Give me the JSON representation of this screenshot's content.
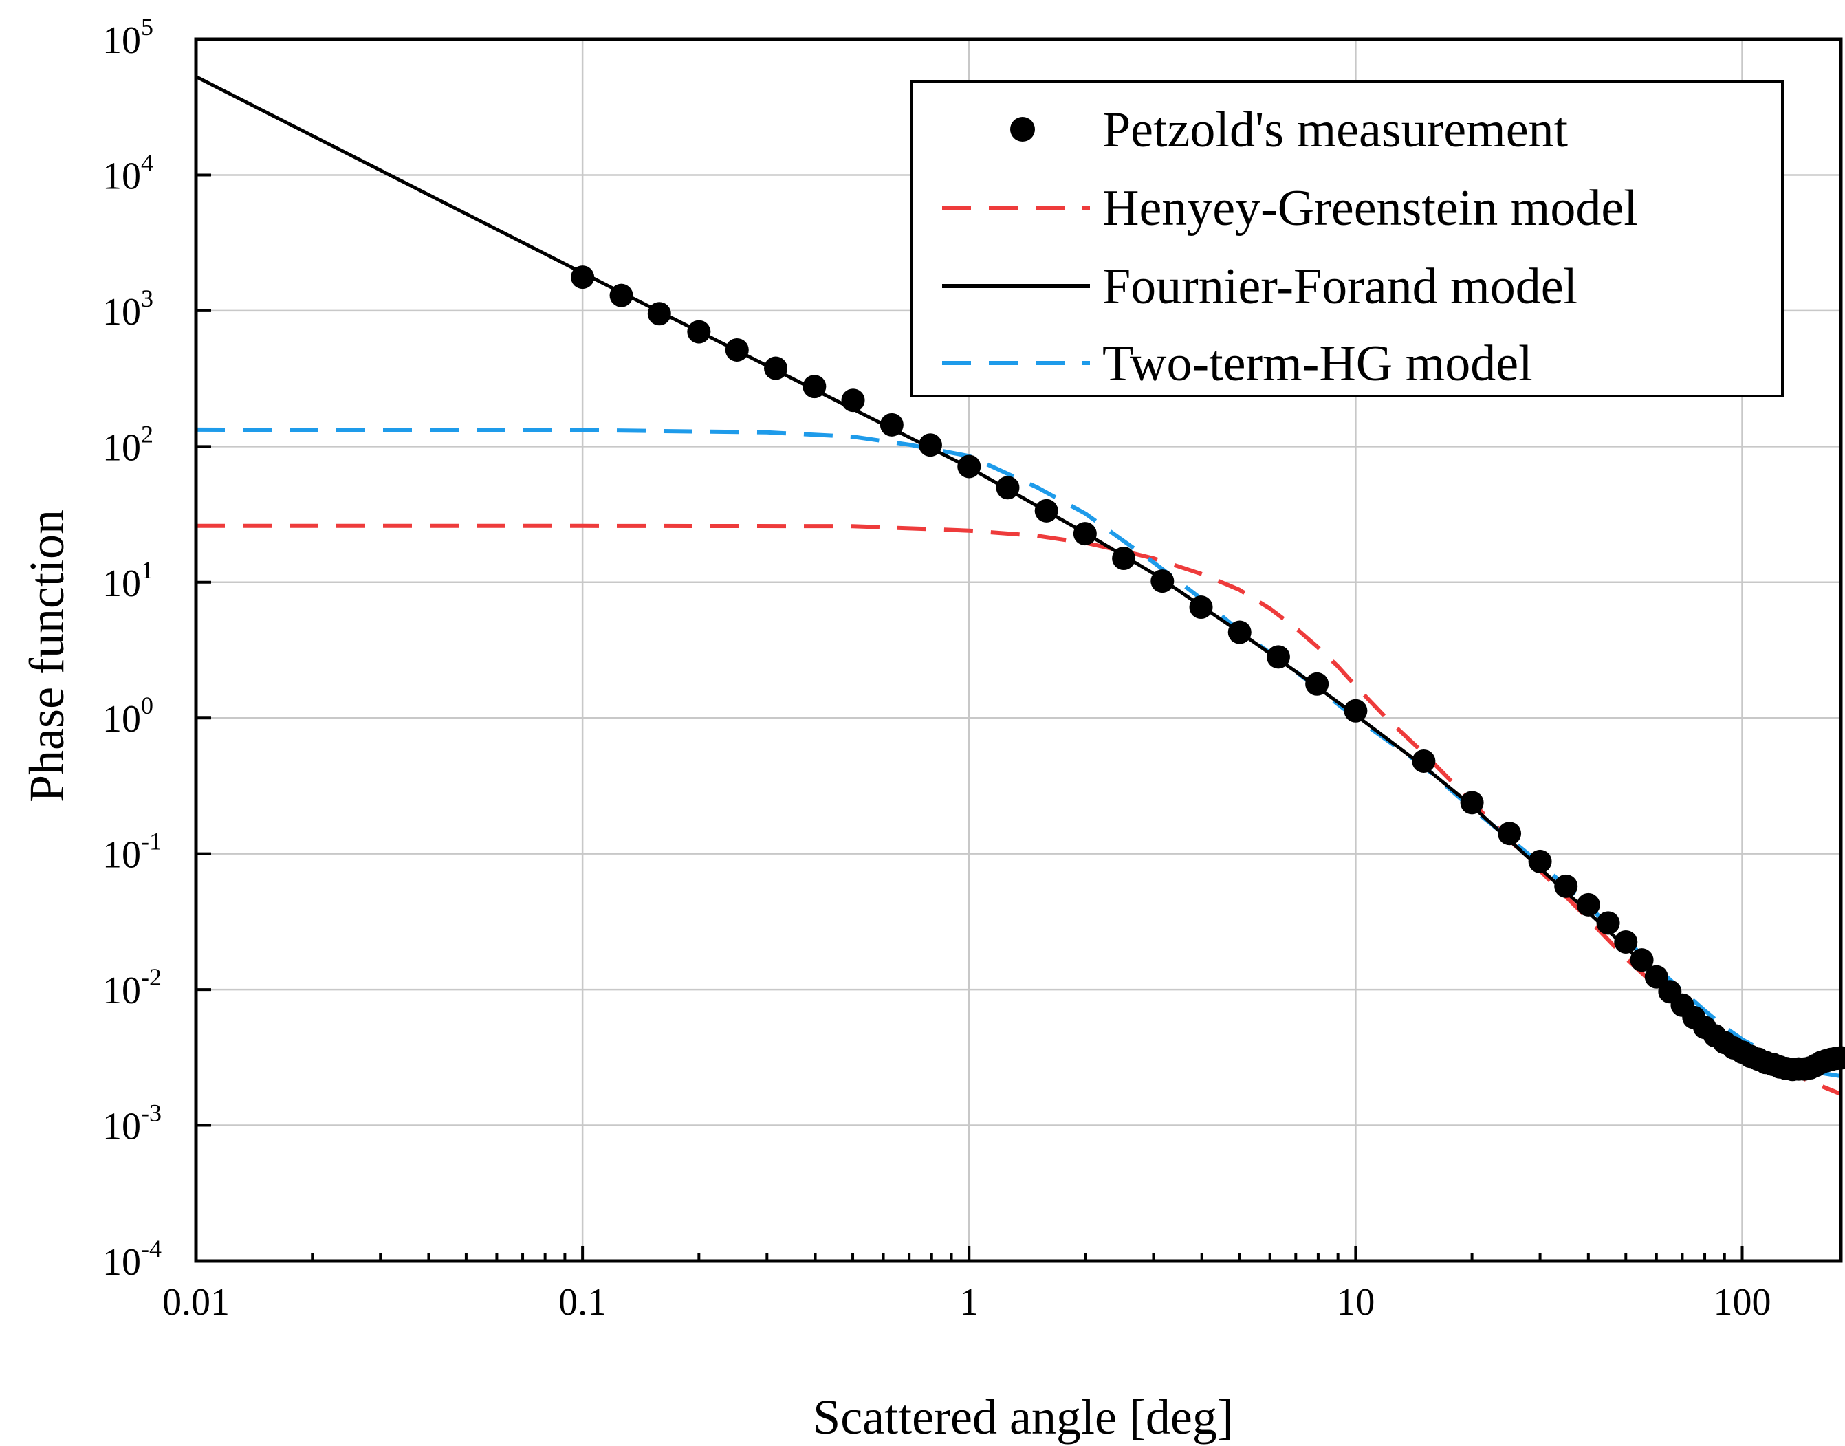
{
  "chart_data": {
    "type": "line",
    "title": "",
    "xlabel": "Scattered angle [deg]",
    "ylabel": "Phase function",
    "xscale": "log",
    "yscale": "log",
    "xlim": [
      0.01,
      180
    ],
    "ylim": [
      0.0001,
      100000
    ],
    "grid": true,
    "legend_position": "top-right",
    "x_ticks": [
      {
        "value": 0.01,
        "label": "0.01"
      },
      {
        "value": 0.1,
        "label": "0.1"
      },
      {
        "value": 1,
        "label": "1"
      },
      {
        "value": 10,
        "label": "10"
      },
      {
        "value": 100,
        "label": "100"
      }
    ],
    "y_ticks": [
      {
        "value": 100000,
        "base": "10",
        "exp": "5"
      },
      {
        "value": 10000,
        "base": "10",
        "exp": "4"
      },
      {
        "value": 1000,
        "base": "10",
        "exp": "3"
      },
      {
        "value": 100,
        "base": "10",
        "exp": "2"
      },
      {
        "value": 10,
        "base": "10",
        "exp": "1"
      },
      {
        "value": 1,
        "base": "10",
        "exp": "0"
      },
      {
        "value": 0.1,
        "base": "10",
        "exp": "-1"
      },
      {
        "value": 0.01,
        "base": "10",
        "exp": "-2"
      },
      {
        "value": 0.001,
        "base": "10",
        "exp": "-3"
      },
      {
        "value": 0.0001,
        "base": "10",
        "exp": "-4"
      }
    ],
    "series": [
      {
        "name": "Petzold's measurement",
        "kind": "scatter",
        "color": "#000000",
        "x": [
          0.1,
          0.126,
          0.158,
          0.2,
          0.251,
          0.316,
          0.398,
          0.501,
          0.631,
          0.794,
          1.0,
          1.259,
          1.585,
          1.995,
          2.512,
          3.162,
          3.981,
          5.012,
          6.31,
          7.943,
          10.0,
          15.0,
          20.0,
          25.0,
          30.0,
          35.0,
          40.0,
          45.0,
          50.0,
          55.0,
          60.0,
          65.0,
          70.0,
          75.0,
          80.0,
          85.0,
          90.0,
          95.0,
          100.0,
          105.0,
          110.0,
          115.0,
          120.0,
          125.0,
          130.0,
          135.0,
          140.0,
          145.0,
          150.0,
          155.0,
          160.0,
          165.0,
          170.0,
          175.0,
          180.0
        ],
        "y": [
          1767,
          1296,
          950.3,
          699.1,
          514.1,
          376.9,
          276.4,
          218.8,
          144.4,
          102.5,
          71.2,
          49.7,
          33.6,
          22.8,
          15.0,
          10.2,
          6.55,
          4.28,
          2.82,
          1.78,
          1.13,
          0.481,
          0.238,
          0.141,
          0.0877,
          0.0577,
          0.0421,
          0.0309,
          0.0224,
          0.0165,
          0.0124,
          0.00964,
          0.00768,
          0.00623,
          0.00526,
          0.00457,
          0.00407,
          0.00372,
          0.00346,
          0.00322,
          0.00307,
          0.0029,
          0.00281,
          0.00269,
          0.00262,
          0.00258,
          0.0026,
          0.0026,
          0.00265,
          0.00276,
          0.0029,
          0.00299,
          0.00306,
          0.00311,
          0.00314
        ]
      },
      {
        "name": "Henyey-Greenstein model",
        "kind": "line",
        "dash": "dashed",
        "color": "#ee3b3b",
        "x": [
          0.01,
          0.1,
          0.5,
          1.0,
          1.5,
          2.0,
          2.5,
          3.0,
          4.0,
          5.0,
          6.0,
          7.0,
          8.0,
          9.0,
          10.0,
          12.0,
          15.0,
          20.0,
          30.0,
          40.0,
          50.0,
          60.0,
          70.0,
          80.0,
          90.0,
          100.0,
          120.0,
          150.0,
          180.0
        ],
        "y": [
          26,
          26,
          25.9,
          24,
          22,
          19.5,
          17,
          15,
          11.5,
          8.8,
          6.4,
          4.6,
          3.3,
          2.4,
          1.72,
          1.0,
          0.55,
          0.24,
          0.075,
          0.033,
          0.017,
          0.0105,
          0.0072,
          0.0054,
          0.0043,
          0.0036,
          0.0028,
          0.0021,
          0.0017
        ]
      },
      {
        "name": "Fournier-Forand model",
        "kind": "line",
        "dash": "solid",
        "color": "#000000",
        "x": [
          0.01,
          0.1,
          1.0,
          2.0,
          3.0,
          5.0,
          7.0,
          10.0,
          15.0,
          20.0,
          30.0,
          40.0,
          50.0,
          60.0,
          70.0,
          80.0,
          90.0,
          100.0,
          110.0,
          120.0,
          130.0,
          140.0,
          150.0,
          160.0,
          170.0,
          180.0
        ],
        "y": [
          53000,
          1900,
          70,
          23,
          11.6,
          4.3,
          2.2,
          1.05,
          0.44,
          0.225,
          0.078,
          0.037,
          0.0205,
          0.0125,
          0.0083,
          0.0059,
          0.0045,
          0.0036,
          0.003,
          0.0027,
          0.0025,
          0.0024,
          0.0023,
          0.0025,
          0.0028,
          0.003
        ]
      },
      {
        "name": "Two-term-HG model",
        "kind": "line",
        "dash": "dashed",
        "color": "#1e9bea",
        "x": [
          0.01,
          0.1,
          0.3,
          0.5,
          0.7,
          1.0,
          1.5,
          2.0,
          3.0,
          4.0,
          5.0,
          7.0,
          10.0,
          15.0,
          20.0,
          30.0,
          40.0,
          50.0,
          60.0,
          70.0,
          80.0,
          90.0,
          100.0,
          120.0,
          150.0,
          180.0
        ],
        "y": [
          133,
          132,
          127,
          118,
          103,
          85,
          50,
          32,
          14,
          7.5,
          4.4,
          2.2,
          1.0,
          0.44,
          0.215,
          0.085,
          0.041,
          0.023,
          0.0145,
          0.0098,
          0.007,
          0.0053,
          0.0043,
          0.0032,
          0.0025,
          0.0023
        ]
      }
    ]
  }
}
